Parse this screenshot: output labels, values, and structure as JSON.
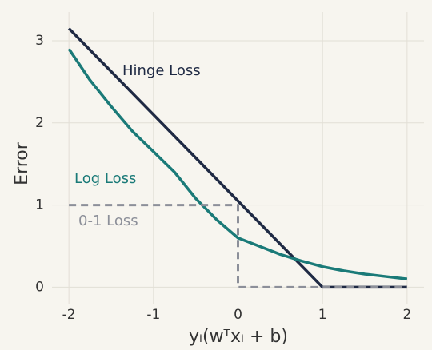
{
  "chart_data": {
    "type": "line",
    "xlabel": "yᵢ(wᵀxᵢ + b)",
    "ylabel": "Error",
    "xlim": [
      -2.2,
      2.2
    ],
    "ylim": [
      -0.2,
      3.35
    ],
    "xticks": [
      -2,
      -1,
      0,
      1,
      2
    ],
    "yticks": [
      0,
      1,
      2,
      3
    ],
    "grid": true,
    "series": [
      {
        "name": "Hinge Loss",
        "color": "#1f2a44",
        "dashed": false,
        "x": [
          -2,
          1,
          2
        ],
        "values": [
          3.15,
          0,
          0
        ]
      },
      {
        "name": "Log Loss",
        "color": "#1a7a78",
        "dashed": false,
        "x": [
          -2,
          -1.75,
          -1.5,
          -1.25,
          -1,
          -0.75,
          -0.5,
          -0.25,
          0,
          0.25,
          0.5,
          0.75,
          1,
          1.25,
          1.5,
          1.75,
          2
        ],
        "values": [
          2.9,
          2.52,
          2.2,
          1.9,
          1.65,
          1.4,
          1.08,
          0.82,
          0.6,
          0.5,
          0.4,
          0.32,
          0.25,
          0.2,
          0.16,
          0.13,
          0.1
        ]
      },
      {
        "name": "0-1 Loss",
        "color": "#8c8f99",
        "dashed": true,
        "x": [
          -2,
          0,
          0,
          2
        ],
        "values": [
          1,
          1,
          0,
          0
        ]
      }
    ]
  }
}
